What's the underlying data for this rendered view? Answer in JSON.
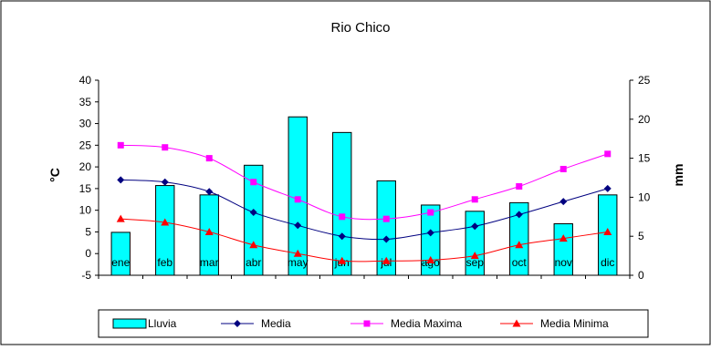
{
  "chart_data": {
    "type": "bar+line",
    "title": "Rio Chico",
    "xlabel": "",
    "ylabel_left": "°C",
    "ylabel_right": "mm",
    "categories": [
      "ene",
      "feb",
      "mar",
      "abr",
      "may",
      "jun",
      "jul",
      "ago",
      "sep",
      "oct",
      "nov",
      "dic"
    ],
    "left_axis": {
      "min": -5,
      "max": 40,
      "ticks": [
        "-5",
        "0",
        "5",
        "10",
        "15",
        "20",
        "25",
        "30",
        "35",
        "40"
      ]
    },
    "right_axis": {
      "min": 0,
      "max": 25,
      "ticks": [
        "0",
        "5",
        "10",
        "15",
        "20",
        "25"
      ]
    },
    "grid": false,
    "legend_position": "bottom",
    "series": [
      {
        "name": "Lluvia",
        "type": "bar",
        "axis": "right",
        "color": "#00FFFF",
        "values": [
          5.5,
          11.5,
          10.3,
          14.1,
          20.3,
          18.3,
          12.1,
          9.0,
          8.2,
          9.3,
          6.6,
          10.3
        ]
      },
      {
        "name": "Media",
        "type": "line",
        "axis": "left",
        "color": "#000080",
        "marker": "diamond",
        "values": [
          17.0,
          16.5,
          14.3,
          9.5,
          6.5,
          4.0,
          3.3,
          4.8,
          6.3,
          9.0,
          12.0,
          15.0
        ]
      },
      {
        "name": "Media Maxima",
        "type": "line",
        "axis": "left",
        "color": "#FF00FF",
        "marker": "square",
        "values": [
          25.0,
          24.5,
          22.0,
          16.5,
          12.5,
          8.5,
          8.0,
          9.5,
          12.5,
          15.5,
          19.5,
          23.0
        ]
      },
      {
        "name": "Media Minima",
        "type": "line",
        "axis": "left",
        "color": "#FF0000",
        "marker": "triangle",
        "values": [
          8.0,
          7.2,
          5.0,
          2.0,
          0.0,
          -1.7,
          -1.7,
          -1.5,
          -0.5,
          2.0,
          3.5,
          5.0
        ]
      }
    ]
  }
}
